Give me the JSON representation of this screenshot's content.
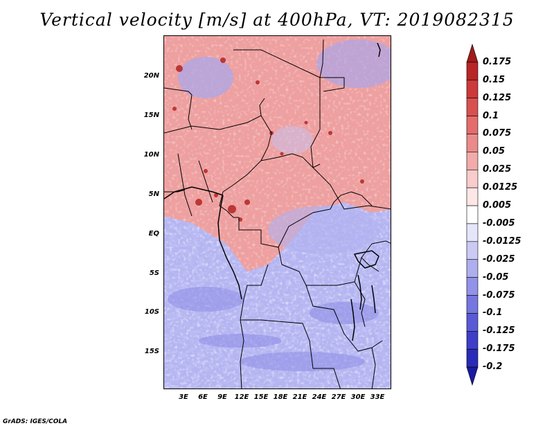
{
  "title": "Vertical velocity [m/s] at 400hPa, VT: 2019082315",
  "credit": "GrADS: IGES/COLA",
  "map": {
    "lat_labels": [
      "20N",
      "15N",
      "10N",
      "5N",
      "EQ",
      "5S",
      "10S",
      "15S"
    ],
    "lon_labels": [
      "3E",
      "6E",
      "9E",
      "12E",
      "15E",
      "18E",
      "21E",
      "24E",
      "27E",
      "30E",
      "33E"
    ]
  },
  "colorbar": {
    "labels": [
      "0.175",
      "0.15",
      "0.125",
      "0.1",
      "0.075",
      "0.05",
      "0.025",
      "0.0125",
      "0.005",
      "-0.005",
      "-0.0125",
      "-0.025",
      "-0.05",
      "-0.075",
      "-0.1",
      "-0.125",
      "-0.175",
      "-0.2"
    ],
    "colors": [
      "#a01a1a",
      "#b82626",
      "#cc3a3a",
      "#d95050",
      "#e46c6c",
      "#eb8a8a",
      "#f2aaaa",
      "#f8cccc",
      "#fce6e6",
      "#ffffff",
      "#e6e6fb",
      "#cacaf4",
      "#aeaeee",
      "#9292e8",
      "#7676e0",
      "#5a5ad6",
      "#3e3ec8",
      "#2a2ab8",
      "#1a1aa0"
    ]
  }
}
